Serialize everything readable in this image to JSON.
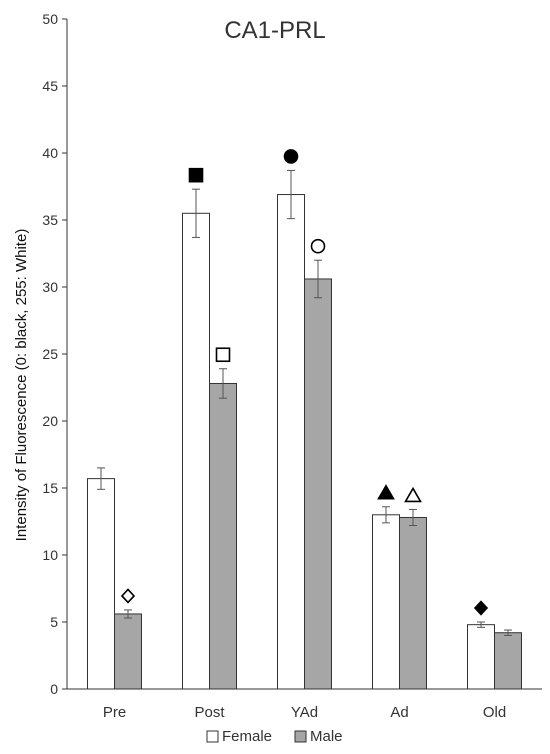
{
  "chart_data": {
    "type": "bar",
    "title": "CA1-PRL",
    "ylabel": "Intensity of Fluorescence (0: black, 255: White)",
    "xlabel": "",
    "ylim": [
      0,
      50
    ],
    "yticks": [
      0,
      5,
      10,
      15,
      20,
      25,
      30,
      35,
      40,
      45,
      50
    ],
    "grid": false,
    "legend_position": "bottom-center",
    "categories": [
      "Pre",
      "Post",
      "YAd",
      "Ad",
      "Old"
    ],
    "series": [
      {
        "name": "Female",
        "color": "#ffffff",
        "values": [
          15.7,
          35.5,
          36.9,
          13.0,
          4.8
        ],
        "errors": [
          0.8,
          1.8,
          1.8,
          0.6,
          0.2
        ],
        "markers": [
          "",
          "filled-square",
          "filled-circle",
          "filled-triangle",
          "filled-diamond"
        ]
      },
      {
        "name": "Male",
        "color": "#a6a6a6",
        "values": [
          5.6,
          22.8,
          30.6,
          12.8,
          4.2
        ],
        "errors": [
          0.3,
          1.1,
          1.4,
          0.6,
          0.2
        ],
        "markers": [
          "open-diamond",
          "open-square",
          "open-circle",
          "open-triangle",
          ""
        ]
      }
    ]
  }
}
